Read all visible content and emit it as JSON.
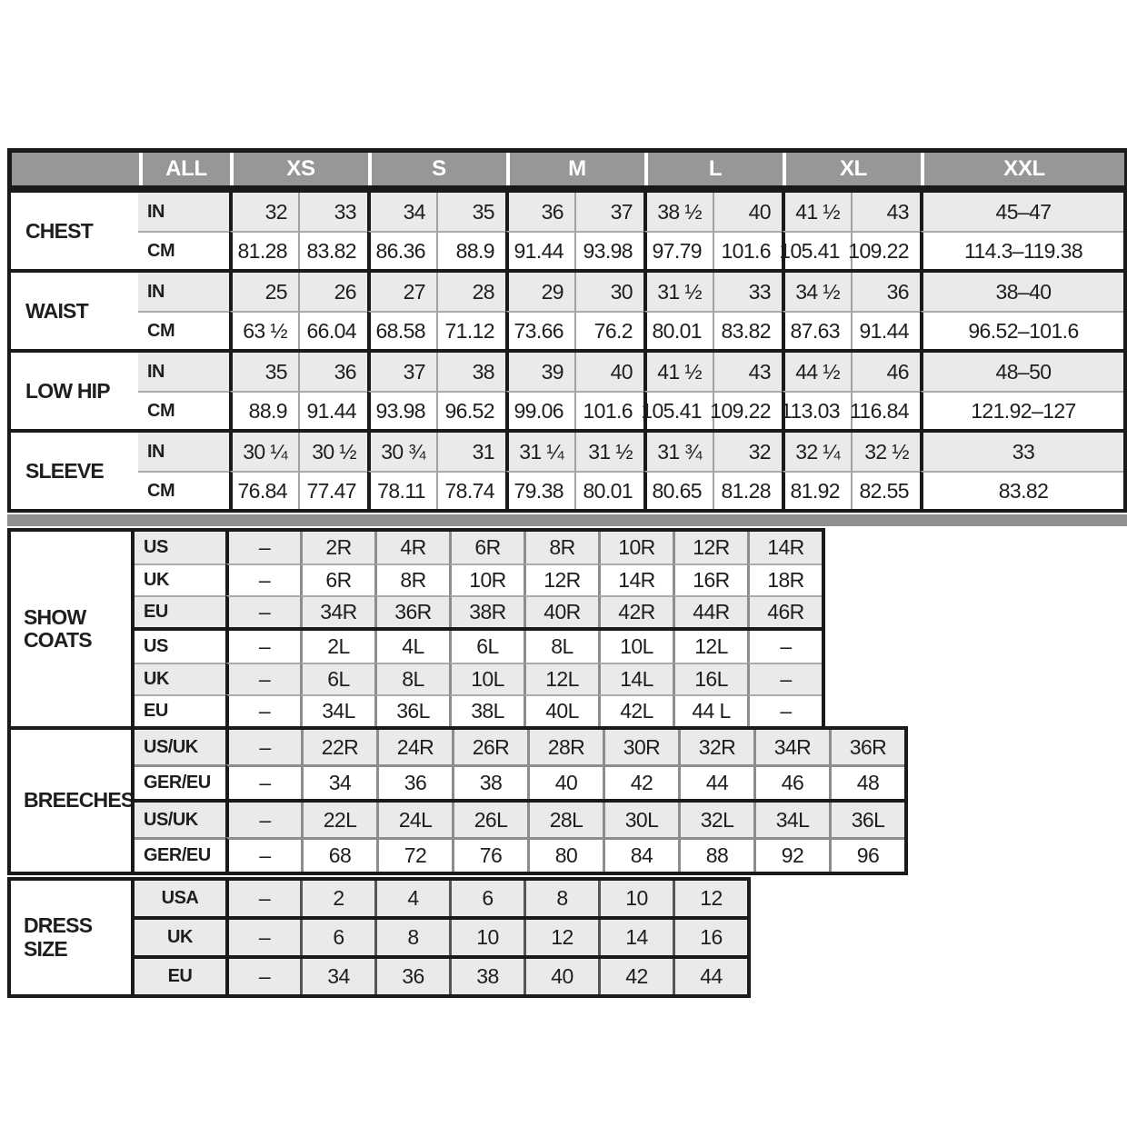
{
  "colors": {
    "header_bg": "#979797",
    "separator_band": "#8f8f8f",
    "shaded_row": "#eaeaea",
    "border": "#1a1a1a",
    "header_text": "#ffffff",
    "text": "#1e1e1e"
  },
  "chart_data": {
    "type": "table",
    "header_cells": [
      {
        "label": ""
      },
      {
        "label": "ALL"
      },
      {
        "label": "XS"
      },
      {
        "label": "S"
      },
      {
        "label": "M"
      },
      {
        "label": "L"
      },
      {
        "label": "XL"
      },
      {
        "label": "XXL"
      }
    ],
    "measurements": [
      {
        "label": "CHEST",
        "rows": [
          {
            "unit": "IN",
            "values": [
              "32",
              "33",
              "34",
              "35",
              "36",
              "37",
              "38 ½",
              "40",
              "41 ½",
              "43"
            ],
            "wide": "45–47"
          },
          {
            "unit": "CM",
            "values": [
              "81.28",
              "83.82",
              "86.36",
              "88.9",
              "91.44",
              "93.98",
              "97.79",
              "101.6",
              "105.41",
              "109.22"
            ],
            "wide": "114.3–119.38"
          }
        ]
      },
      {
        "label": "WAIST",
        "rows": [
          {
            "unit": "IN",
            "values": [
              "25",
              "26",
              "27",
              "28",
              "29",
              "30",
              "31 ½",
              "33",
              "34 ½",
              "36"
            ],
            "wide": "38–40"
          },
          {
            "unit": "CM",
            "values": [
              "63 ½",
              "66.04",
              "68.58",
              "71.12",
              "73.66",
              "76.2",
              "80.01",
              "83.82",
              "87.63",
              "91.44"
            ],
            "wide": "96.52–101.6"
          }
        ]
      },
      {
        "label": "LOW HIP",
        "rows": [
          {
            "unit": "IN",
            "values": [
              "35",
              "36",
              "37",
              "38",
              "39",
              "40",
              "41 ½",
              "43",
              "44 ½",
              "46"
            ],
            "wide": "48–50"
          },
          {
            "unit": "CM",
            "values": [
              "88.9",
              "91.44",
              "93.98",
              "96.52",
              "99.06",
              "101.6",
              "105.41",
              "109.22",
              "113.03",
              "116.84"
            ],
            "wide": "121.92–127"
          }
        ]
      },
      {
        "label": "SLEEVE",
        "rows": [
          {
            "unit": "IN",
            "values": [
              "30 ¼",
              "30 ½",
              "30 ¾",
              "31",
              "31 ¼",
              "31 ½",
              "31 ¾",
              "32",
              "32 ¼",
              "32 ½"
            ],
            "wide": "33"
          },
          {
            "unit": "CM",
            "values": [
              "76.84",
              "77.47",
              "78.11",
              "78.74",
              "79.38",
              "80.01",
              "80.65",
              "81.28",
              "81.92",
              "82.55"
            ],
            "wide": "83.82"
          }
        ]
      }
    ],
    "show_coats": {
      "label": "SHOW COATS",
      "blocks": [
        {
          "rows": [
            {
              "unit": "US",
              "values": [
                "–",
                "2R",
                "4R",
                "6R",
                "8R",
                "10R",
                "12R",
                "14R"
              ]
            },
            {
              "unit": "UK",
              "values": [
                "–",
                "6R",
                "8R",
                "10R",
                "12R",
                "14R",
                "16R",
                "18R"
              ]
            },
            {
              "unit": "EU",
              "values": [
                "–",
                "34R",
                "36R",
                "38R",
                "40R",
                "42R",
                "44R",
                "46R"
              ]
            }
          ]
        },
        {
          "rows": [
            {
              "unit": "US",
              "values": [
                "–",
                "2L",
                "4L",
                "6L",
                "8L",
                "10L",
                "12L",
                "–"
              ]
            },
            {
              "unit": "UK",
              "values": [
                "–",
                "6L",
                "8L",
                "10L",
                "12L",
                "14L",
                "16L",
                "–"
              ]
            },
            {
              "unit": "EU",
              "values": [
                "–",
                "34L",
                "36L",
                "38L",
                "40L",
                "42L",
                "44 L",
                "–"
              ]
            }
          ]
        }
      ]
    },
    "breeches": {
      "label": "BREECHES",
      "blocks": [
        {
          "rows": [
            {
              "unit": "US/UK",
              "values": [
                "–",
                "22R",
                "24R",
                "26R",
                "28R",
                "30R",
                "32R",
                "34R",
                "36R"
              ]
            },
            {
              "unit": "GER/EU",
              "values": [
                "–",
                "34",
                "36",
                "38",
                "40",
                "42",
                "44",
                "46",
                "48"
              ]
            }
          ]
        },
        {
          "rows": [
            {
              "unit": "US/UK",
              "values": [
                "–",
                "22L",
                "24L",
                "26L",
                "28L",
                "30L",
                "32L",
                "34L",
                "36L"
              ]
            },
            {
              "unit": "GER/EU",
              "values": [
                "–",
                "68",
                "72",
                "76",
                "80",
                "84",
                "88",
                "92",
                "96"
              ]
            }
          ]
        }
      ]
    },
    "dress_size": {
      "label": "DRESS SIZE",
      "rows": [
        {
          "unit": "USA",
          "values": [
            "–",
            "2",
            "4",
            "6",
            "8",
            "10",
            "12"
          ]
        },
        {
          "unit": "UK",
          "values": [
            "–",
            "6",
            "8",
            "10",
            "12",
            "14",
            "16"
          ]
        },
        {
          "unit": "EU",
          "values": [
            "–",
            "34",
            "36",
            "38",
            "40",
            "42",
            "44"
          ]
        }
      ]
    }
  }
}
